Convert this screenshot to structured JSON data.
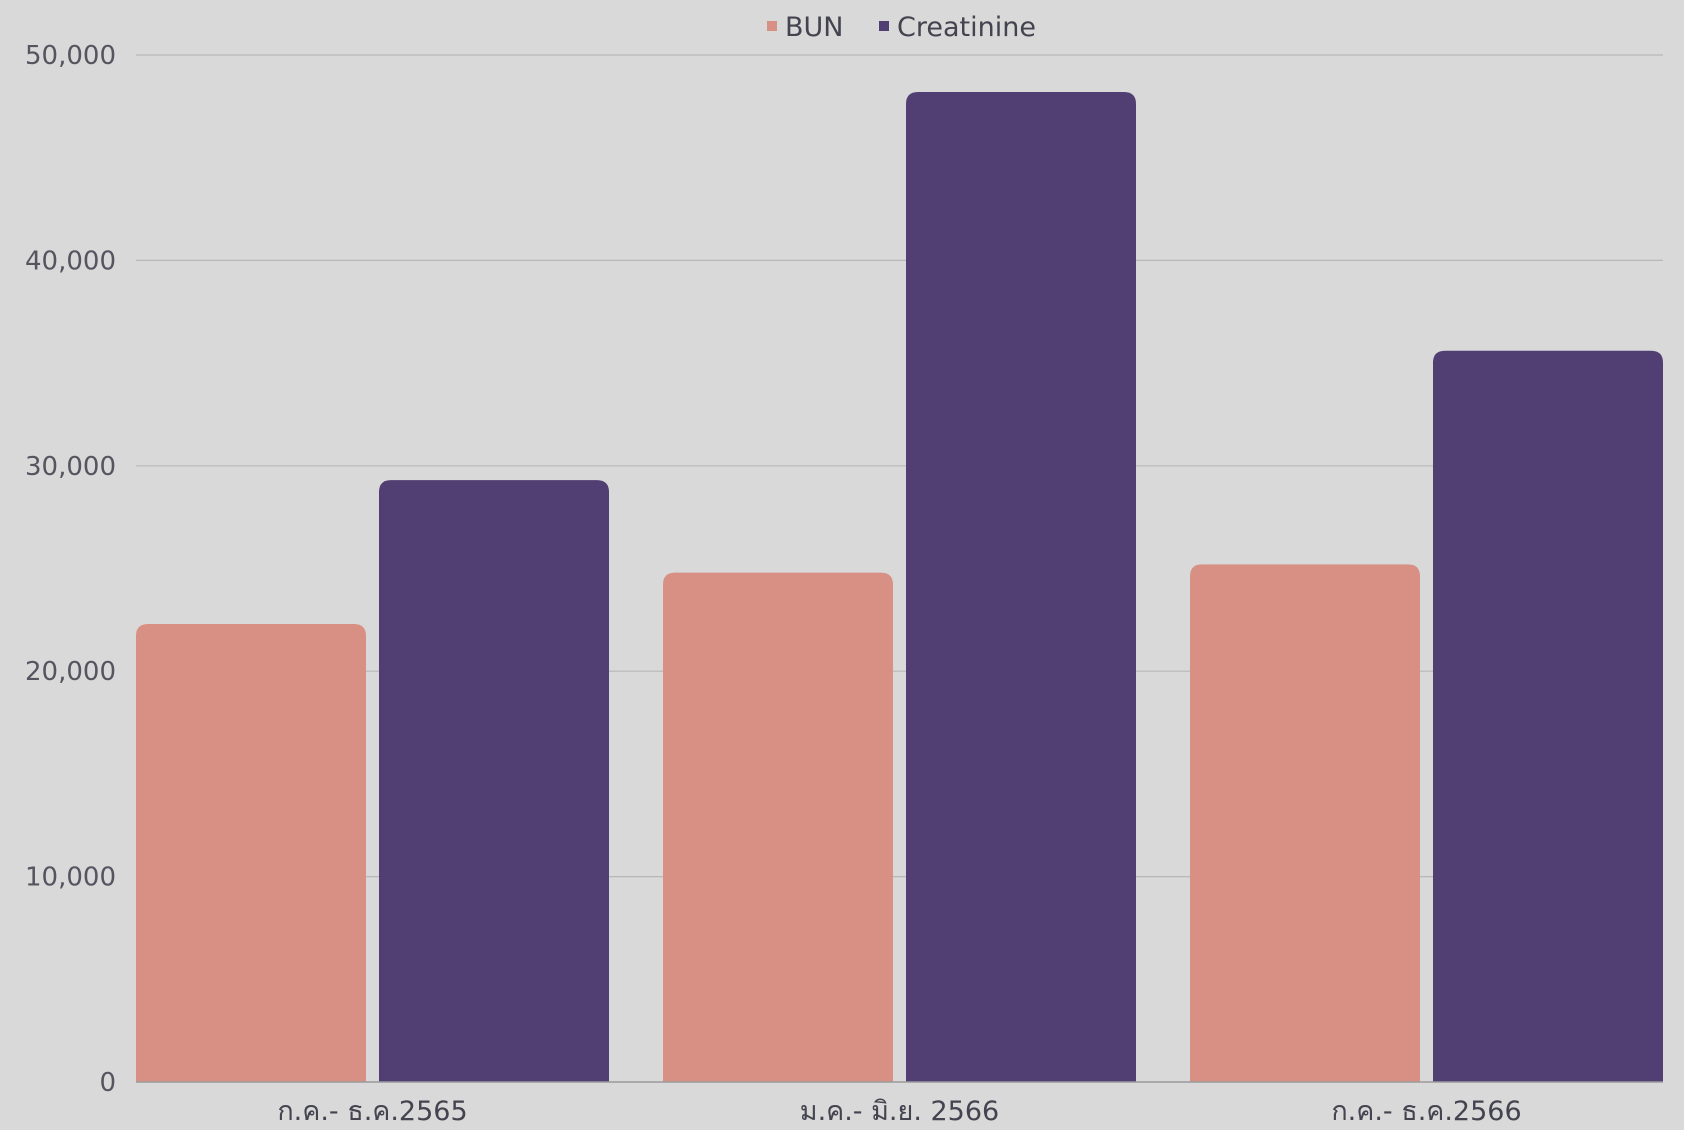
{
  "chart_data": {
    "type": "bar",
    "categories": [
      "ก.ค.- ธ.ค.2565",
      "ม.ค.- มิ.ย. 2566",
      "ก.ค.- ธ.ค.2566"
    ],
    "series": [
      {
        "name": "BUN",
        "color": "#d79083",
        "values": [
          22300,
          24800,
          25200
        ]
      },
      {
        "name": "Creatinine",
        "color": "#513e72",
        "values": [
          29300,
          48200,
          35600
        ]
      }
    ],
    "ylim": [
      0,
      50000
    ],
    "yticks": [
      0,
      10000,
      20000,
      30000,
      40000,
      50000
    ],
    "ytick_labels": [
      "0",
      "10,000",
      "20,000",
      "30,000",
      "40,000",
      "50,000"
    ],
    "grid": true,
    "legend_position": "top-center",
    "background": "#d9d9d9"
  }
}
